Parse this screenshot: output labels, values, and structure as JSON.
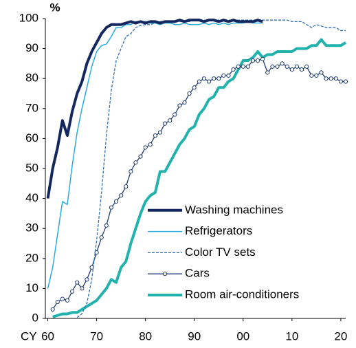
{
  "chart_data": {
    "type": "line",
    "ylabel": "%",
    "xlabel": "CY",
    "x": [
      1960,
      1961,
      1962,
      1963,
      1964,
      1965,
      1966,
      1967,
      1968,
      1969,
      1970,
      1971,
      1972,
      1973,
      1974,
      1975,
      1976,
      1977,
      1978,
      1979,
      1980,
      1981,
      1982,
      1983,
      1984,
      1985,
      1986,
      1987,
      1988,
      1989,
      1990,
      1991,
      1992,
      1993,
      1994,
      1995,
      1996,
      1997,
      1998,
      1999,
      2000,
      2001,
      2002,
      2003,
      2004,
      2005,
      2006,
      2007,
      2008,
      2009,
      2010,
      2011,
      2012,
      2013,
      2014,
      2015,
      2016,
      2017,
      2018,
      2019,
      2020,
      2021
    ],
    "xlim": [
      1959.5,
      2021
    ],
    "xticks": [
      {
        "value": 1960,
        "label": "60"
      },
      {
        "value": 1970,
        "label": "70"
      },
      {
        "value": 1980,
        "label": "80"
      },
      {
        "value": 1990,
        "label": "90"
      },
      {
        "value": 2000,
        "label": "00"
      },
      {
        "value": 2010,
        "label": "10"
      },
      {
        "value": 2020,
        "label": "20"
      }
    ],
    "ylim": [
      0,
      100
    ],
    "yticks": [
      0,
      10,
      20,
      30,
      40,
      50,
      60,
      70,
      80,
      90,
      100
    ],
    "legend": "lower right",
    "series": [
      {
        "name": "Washing machines",
        "color": "#14275e",
        "width": 4,
        "dash": "none",
        "markers": false,
        "values": [
          40,
          50,
          57,
          66,
          61,
          69,
          75,
          79,
          85,
          89,
          92,
          95,
          97,
          98,
          98,
          98,
          98.5,
          99,
          98.5,
          99,
          98.5,
          99,
          99,
          98.5,
          99,
          99,
          99,
          99.5,
          99,
          99.5,
          99.5,
          99.5,
          99,
          99.5,
          99.5,
          99,
          99.5,
          99,
          99.5,
          99,
          99,
          99,
          99,
          99.5,
          99,
          null,
          null,
          null,
          null,
          null,
          null,
          null,
          null,
          null,
          null,
          null,
          null,
          null,
          null,
          null,
          null,
          null
        ]
      },
      {
        "name": "Refrigerators",
        "color": "#29abe2",
        "width": 1.5,
        "dash": "none",
        "markers": false,
        "values": [
          10,
          17,
          28,
          39,
          38,
          51,
          62,
          70,
          77,
          84,
          89,
          91,
          91.5,
          94,
          97,
          97,
          98,
          98,
          99,
          99,
          99,
          98.5,
          98.5,
          98,
          98.5,
          98.5,
          98,
          98,
          98.5,
          98,
          98,
          98,
          98.5,
          98,
          98.5,
          98,
          98.5,
          98,
          98.5,
          98.5,
          98.5,
          99,
          98.5,
          98.5,
          98.5,
          null,
          null,
          null,
          null,
          null,
          null,
          null,
          null,
          null,
          null,
          null,
          null,
          null,
          null,
          null,
          null,
          null
        ]
      },
      {
        "name": "Color TV sets",
        "color": "#2e6fb5",
        "width": 1.3,
        "dash": "4 2",
        "markers": false,
        "values": [
          null,
          null,
          null,
          null,
          null,
          null,
          0.3,
          1.6,
          5,
          13,
          26,
          42,
          61,
          76,
          86,
          90,
          94,
          95,
          97,
          97.7,
          98,
          98,
          98.5,
          99,
          99,
          99,
          99,
          99,
          99,
          99,
          99.5,
          99.5,
          99.5,
          99.5,
          99.5,
          99.5,
          99.5,
          99.5,
          99.5,
          99.5,
          99.5,
          99.5,
          99.5,
          99.5,
          99.5,
          99.5,
          99.5,
          99.5,
          99.5,
          99.5,
          99,
          99,
          99,
          98,
          97,
          98,
          97.5,
          97,
          97,
          97,
          96,
          96
        ]
      },
      {
        "name": "Cars",
        "color": "#1f3a70",
        "width": 1.3,
        "dash": "none",
        "markers": true,
        "values": [
          null,
          3,
          5.5,
          6.5,
          6,
          9,
          12,
          10,
          13,
          17,
          22,
          27,
          31,
          37,
          39,
          41,
          44,
          49,
          52,
          54,
          57,
          58,
          61,
          62,
          65,
          66,
          68,
          71,
          72,
          75,
          77,
          79,
          80,
          79,
          80,
          80,
          81,
          81,
          83,
          84,
          84,
          84,
          86,
          86,
          86.5,
          82,
          84,
          84,
          85,
          84,
          83,
          84,
          83,
          84,
          81,
          81,
          82,
          80,
          80,
          80,
          79,
          79
        ]
      },
      {
        "name": "Room air-conditioners",
        "color": "#22b2ad",
        "width": 4,
        "dash": "none",
        "markers": false,
        "values": [
          null,
          0.5,
          1,
          1.5,
          1.5,
          2,
          2,
          3,
          4,
          5,
          6,
          8,
          10,
          13,
          12,
          17,
          19,
          25,
          30,
          35,
          39,
          41,
          42,
          49,
          49,
          52,
          55,
          58,
          60,
          63,
          64,
          68,
          70,
          73,
          74,
          77,
          77,
          79,
          80,
          83,
          86,
          86,
          87,
          89,
          87,
          88,
          88,
          89,
          89,
          89,
          89,
          90,
          90,
          90,
          91,
          91,
          93,
          91,
          91,
          91,
          91,
          92
        ]
      }
    ]
  }
}
